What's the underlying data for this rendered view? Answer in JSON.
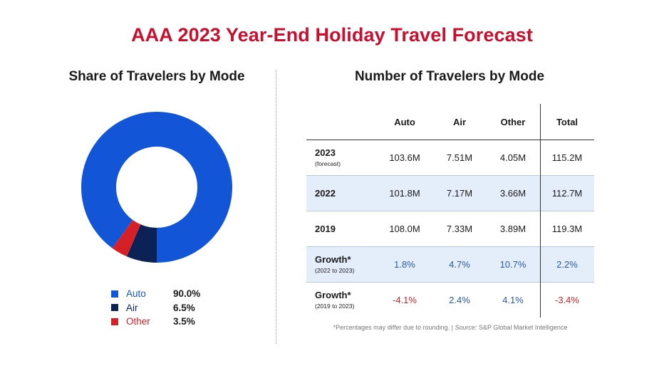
{
  "title": "AAA 2023 Year-End Holiday Travel Forecast",
  "colors": {
    "title": "#c8102e",
    "auto": "#1255d6",
    "air": "#0c2155",
    "other": "#d62027",
    "growth_positive": "#2a5aa5",
    "growth_negative": "#c0272d"
  },
  "chart_data": [
    {
      "type": "pie",
      "title": "Share of Travelers by Mode",
      "donut": true,
      "legend_placement": "bottom",
      "slices": [
        {
          "label": "Auto",
          "value": 90.0,
          "display": "90.0%",
          "color": "#1255d6"
        },
        {
          "label": "Air",
          "value": 6.5,
          "display": "6.5%",
          "color": "#0c2155"
        },
        {
          "label": "Other",
          "value": 3.5,
          "display": "3.5%",
          "color": "#d62027"
        }
      ]
    },
    {
      "type": "table",
      "title": "Number of Travelers by Mode",
      "columns": [
        "Auto",
        "Air",
        "Other",
        "Total"
      ],
      "rows": [
        {
          "label": "2023",
          "sublabel": "(forecast)",
          "values": [
            "103.6M",
            "7.51M",
            "4.05M",
            "115.2M"
          ],
          "shaded": false
        },
        {
          "label": "2022",
          "sublabel": "",
          "values": [
            "101.8M",
            "7.17M",
            "3.66M",
            "112.7M"
          ],
          "shaded": true
        },
        {
          "label": "2019",
          "sublabel": "",
          "values": [
            "108.0M",
            "7.33M",
            "3.89M",
            "119.3M"
          ],
          "shaded": false
        },
        {
          "label": "Growth*",
          "sublabel": "(2022 to 2023)",
          "values": [
            "1.8%",
            "4.7%",
            "10.7%",
            "2.2%"
          ],
          "shaded": true
        },
        {
          "label": "Growth*",
          "sublabel": "(2019 to 2023)",
          "values": [
            "-4.1%",
            "2.4%",
            "4.1%",
            "-3.4%"
          ],
          "shaded": false
        }
      ]
    }
  ],
  "footnote": {
    "text": "*Percentages may differ due to rounding. | ",
    "source_label": "Source:",
    "source": " S&P Global Market Intelligence"
  }
}
